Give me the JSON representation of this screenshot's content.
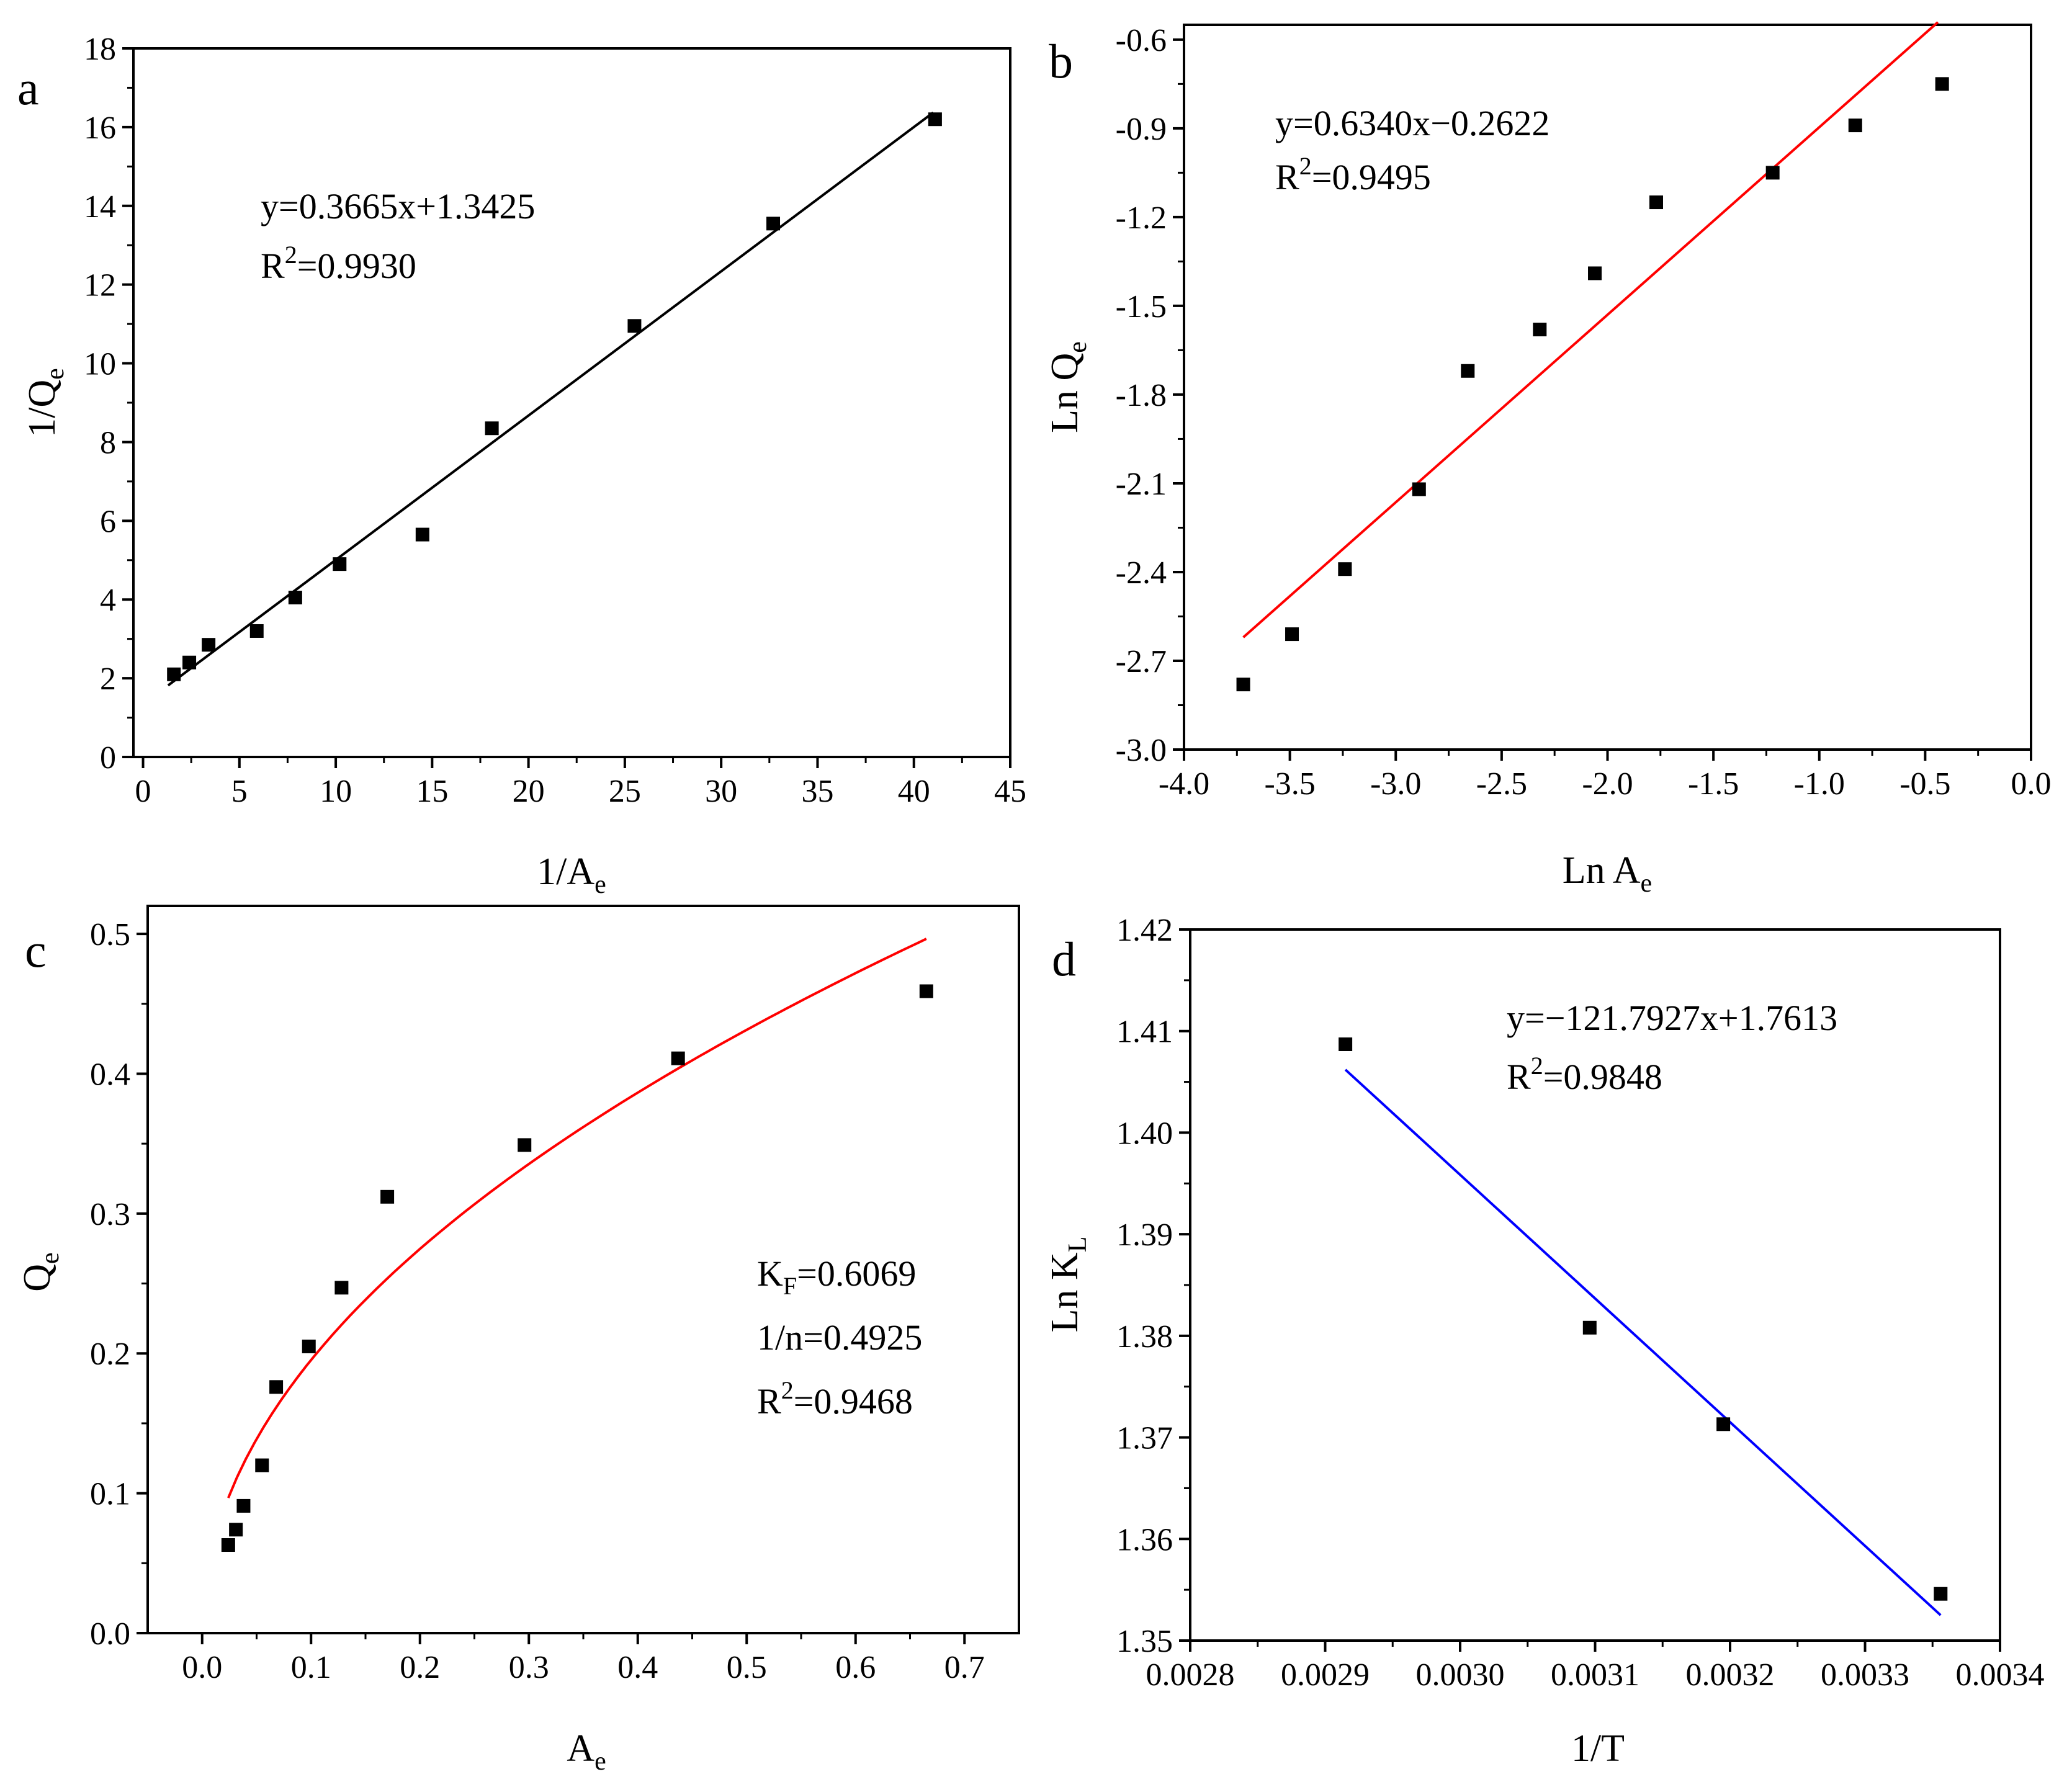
{
  "colors": {
    "point": "#000000",
    "fit_a": "#000000",
    "fit_b": "#ff0000",
    "fit_c": "#ff0000",
    "fit_d": "#0000ff"
  },
  "chart_data": [
    {
      "panel": "a",
      "type": "scatter",
      "xlabel": {
        "main": "1/A",
        "sub": "e"
      },
      "ylabel": {
        "main": "1/Q",
        "sub": "e"
      },
      "xlim": [
        -0.5,
        45
      ],
      "ylim": [
        0,
        18
      ],
      "xticks": [
        0,
        5,
        10,
        15,
        20,
        25,
        30,
        35,
        40,
        45
      ],
      "yticks": [
        0,
        2,
        4,
        6,
        8,
        10,
        12,
        14,
        16,
        18
      ],
      "xtick_labels": [
        "0",
        "5",
        "10",
        "15",
        "20",
        "25",
        "30",
        "35",
        "40",
        "45"
      ],
      "ytick_labels": [
        "0",
        "2",
        "4",
        "6",
        "8",
        "10",
        "12",
        "14",
        "16",
        "18"
      ],
      "points": {
        "x": [
          1.6,
          2.4,
          3.4,
          5.9,
          7.9,
          10.2,
          14.5,
          18.1,
          25.5,
          32.7,
          41.1
        ],
        "y": [
          2.1,
          2.4,
          2.85,
          3.2,
          4.05,
          4.9,
          5.65,
          8.35,
          10.95,
          13.55,
          16.2
        ]
      },
      "fit": {
        "kind": "linear",
        "slope": 0.3665,
        "intercept": 1.3425,
        "x_range": [
          1.3,
          41.0
        ]
      },
      "annotation": {
        "equation": "y=0.3665x+1.3425",
        "r2_label": "R",
        "r2_sup": "2",
        "r2_value": "=0.9930"
      }
    },
    {
      "panel": "b",
      "type": "scatter",
      "xlabel": {
        "main": "Ln A",
        "sub": "e"
      },
      "ylabel": {
        "main": "Ln Q",
        "sub": "e"
      },
      "xlim": [
        -4.0,
        0.0
      ],
      "ylim": [
        -3.0,
        -0.55
      ],
      "xticks": [
        -4.0,
        -3.5,
        -3.0,
        -2.5,
        -2.0,
        -1.5,
        -1.0,
        -0.5,
        0.0
      ],
      "yticks": [
        -3.0,
        -2.7,
        -2.4,
        -2.1,
        -1.8,
        -1.5,
        -1.2,
        -0.9,
        -0.6
      ],
      "xtick_labels": [
        "-4.0",
        "-3.5",
        "-3.0",
        "-2.5",
        "-2.0",
        "-1.5",
        "-1.0",
        "-0.5",
        "0.0"
      ],
      "ytick_labels": [
        "-3.0",
        "-2.7",
        "-2.4",
        "-2.1",
        "-1.8",
        "-1.5",
        "-1.2",
        "-0.9",
        "-0.6"
      ],
      "points": {
        "x": [
          -3.72,
          -3.49,
          -3.24,
          -2.89,
          -2.66,
          -2.32,
          -2.06,
          -1.77,
          -1.22,
          -0.83,
          -0.42
        ],
        "y": [
          -2.78,
          -2.61,
          -2.39,
          -2.12,
          -1.72,
          -1.58,
          -1.39,
          -1.15,
          -1.05,
          -0.89,
          -0.75
        ]
      },
      "fit": {
        "kind": "linear",
        "slope": 0.634,
        "intercept": -0.2622,
        "x_range": [
          -3.72,
          -0.44
        ]
      },
      "annotation": {
        "equation": "y=0.6340x−0.2622",
        "r2_label": "R",
        "r2_sup": "2",
        "r2_value": "=0.9495"
      }
    },
    {
      "panel": "c",
      "type": "scatter",
      "xlabel": {
        "main": "A",
        "sub": "e"
      },
      "ylabel": {
        "main": "Q",
        "sub": "e"
      },
      "xlim": [
        -0.05,
        0.75
      ],
      "ylim": [
        0.0,
        0.52
      ],
      "xticks": [
        0.0,
        0.1,
        0.2,
        0.3,
        0.4,
        0.5,
        0.6,
        0.7
      ],
      "yticks": [
        0.0,
        0.1,
        0.2,
        0.3,
        0.4,
        0.5
      ],
      "xtick_labels": [
        "0.0",
        "0.1",
        "0.2",
        "0.3",
        "0.4",
        "0.5",
        "0.6",
        "0.7"
      ],
      "ytick_labels": [
        "0.0",
        "0.1",
        "0.2",
        "0.3",
        "0.4",
        "0.5"
      ],
      "points": {
        "x": [
          0.024,
          0.031,
          0.038,
          0.055,
          0.068,
          0.098,
          0.128,
          0.17,
          0.296,
          0.437,
          0.665
        ],
        "y": [
          0.063,
          0.074,
          0.091,
          0.12,
          0.176,
          0.205,
          0.247,
          0.312,
          0.349,
          0.411,
          0.459
        ]
      },
      "fit": {
        "kind": "power",
        "coef": 0.6069,
        "exponent": 0.4925,
        "x_range": [
          0.024,
          0.665
        ]
      },
      "annotation": {
        "kf_label": "K",
        "kf_sub": "F",
        "kf_value": "=0.6069",
        "n_line": "1/n=0.4925",
        "r2_label": "R",
        "r2_sup": "2",
        "r2_value": "=0.9468"
      }
    },
    {
      "panel": "d",
      "type": "scatter",
      "xlabel": {
        "main": "1/T",
        "sub": ""
      },
      "ylabel": {
        "main": "Ln K",
        "sub": "L"
      },
      "xlim": [
        0.0028,
        0.0034
      ],
      "ylim": [
        1.35,
        1.42
      ],
      "xticks": [
        0.0028,
        0.0029,
        0.003,
        0.0031,
        0.0032,
        0.0033,
        0.0034
      ],
      "yticks": [
        1.35,
        1.36,
        1.37,
        1.38,
        1.39,
        1.4,
        1.41,
        1.42
      ],
      "xtick_labels": [
        "0.0028",
        "0.0029",
        "0.0030",
        "0.0031",
        "0.0032",
        "0.0033",
        "0.0034"
      ],
      "ytick_labels": [
        "1.35",
        "1.36",
        "1.37",
        "1.38",
        "1.39",
        "1.40",
        "1.41",
        "1.42"
      ],
      "points": {
        "x": [
          0.002915,
          0.003096,
          0.003195,
          0.003356
        ],
        "y": [
          1.4087,
          1.3808,
          1.3713,
          1.3546
        ]
      },
      "fit": {
        "kind": "line",
        "x_range": [
          0.002915,
          0.003356
        ],
        "y_range": [
          1.4062,
          1.3525
        ]
      },
      "annotation": {
        "equation": "y=−121.7927x+1.7613",
        "r2_label": "R",
        "r2_sup": "2",
        "r2_value": "=0.9848"
      }
    }
  ]
}
